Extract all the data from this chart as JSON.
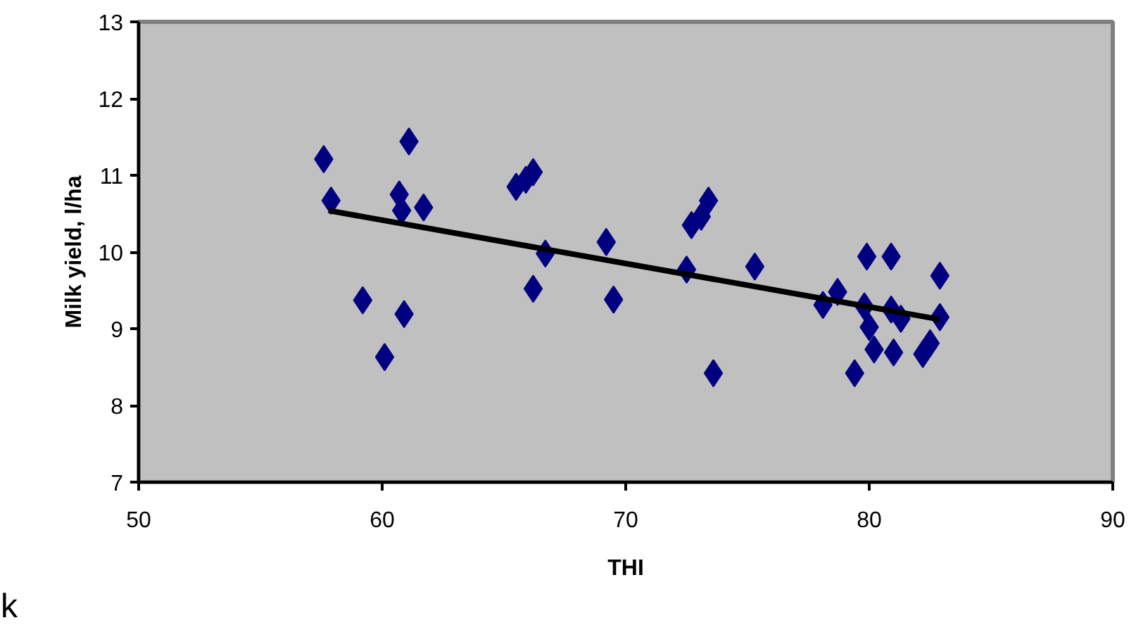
{
  "chart_data": {
    "type": "scatter",
    "xlabel": "THI",
    "ylabel": "Milk yield, l/ha",
    "xlim": [
      50,
      90
    ],
    "xticks": [
      50,
      60,
      70,
      80,
      90
    ],
    "ylim": [
      7,
      13
    ],
    "yticks": [
      7,
      8,
      9,
      10,
      11,
      12,
      13
    ],
    "grid": false,
    "marker": "diamond",
    "series": [
      {
        "color": "#000080",
        "x": [
          57.6,
          57.9,
          59.2,
          60.1,
          60.9,
          60.7,
          60.8,
          61.1,
          61.7,
          65.5,
          65.9,
          66.2,
          66.7,
          66.2,
          69.2,
          69.5,
          72.5,
          72.7,
          73.1,
          73.4,
          73.6,
          75.3,
          78.1,
          78.7,
          79.9,
          80.9,
          79.8,
          80.0,
          80.2,
          80.9,
          81.3,
          81.0,
          79.4,
          82.2,
          82.5,
          82.9,
          82.9
        ],
        "values": [
          11.21,
          10.67,
          9.37,
          8.63,
          9.19,
          10.75,
          10.54,
          11.44,
          10.58,
          10.85,
          10.94,
          11.04,
          9.98,
          9.52,
          10.13,
          9.38,
          9.77,
          10.35,
          10.46,
          10.67,
          8.42,
          9.81,
          9.31,
          9.48,
          9.94,
          9.94,
          9.29,
          9.02,
          8.73,
          9.25,
          9.13,
          8.69,
          8.42,
          8.67,
          8.81,
          9.69,
          9.15
        ]
      },
      {
        "type": "line",
        "color": "#000000",
        "marker": "none",
        "line_style": "solid",
        "x": [
          57.8,
          82.9
        ],
        "values": [
          10.54,
          9.12
        ]
      }
    ],
    "annotations": [
      "k"
    ]
  }
}
